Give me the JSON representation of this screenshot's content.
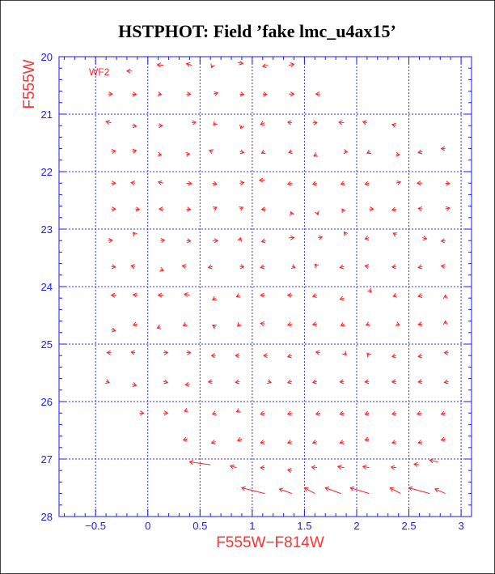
{
  "chart_data": {
    "type": "scatter",
    "title": "HSTPHOT: Field ’fake lmc_u4ax15’",
    "panel_label": "WF2",
    "xlabel": "F555W−F814W",
    "ylabel": "F555W",
    "xlim": [
      -0.85,
      3.1
    ],
    "ylim": [
      28,
      20
    ],
    "xticks": [
      -0.5,
      0,
      0.5,
      1,
      1.5,
      2,
      2.5,
      3
    ],
    "xtick_labels": [
      "−0.5",
      "0",
      "0.5",
      "1",
      "1.5",
      "2",
      "2.5",
      "3"
    ],
    "yticks": [
      20,
      21,
      22,
      23,
      24,
      25,
      26,
      27,
      28
    ],
    "ytick_labels": [
      "20",
      "21",
      "22",
      "23",
      "24",
      "25",
      "26",
      "27",
      "28"
    ],
    "grid": true,
    "colors": {
      "axis": "#1a1aff",
      "grid": "#3333ff",
      "marker": "#ff2222",
      "frame": "#000000"
    },
    "points": [
      {
        "x": -0.15,
        "y": 20.25,
        "dx": -0.05,
        "dy": 0.0
      },
      {
        "x": 0.15,
        "y": 20.15,
        "dx": -0.06,
        "dy": -0.01
      },
      {
        "x": 0.42,
        "y": 20.15,
        "dx": -0.05,
        "dy": -0.03
      },
      {
        "x": 0.62,
        "y": 20.15,
        "dx": -0.01,
        "dy": 0.04
      },
      {
        "x": 0.86,
        "y": 20.1,
        "dx": 0.05,
        "dy": 0.02
      },
      {
        "x": 1.15,
        "y": 20.15,
        "dx": -0.05,
        "dy": 0.02
      },
      {
        "x": 1.35,
        "y": 20.15,
        "dx": 0.05,
        "dy": -0.02
      },
      {
        "x": -0.38,
        "y": 20.65,
        "dx": 0.04,
        "dy": 0.0
      },
      {
        "x": -0.15,
        "y": 20.65,
        "dx": 0.04,
        "dy": 0.01
      },
      {
        "x": 0.1,
        "y": 20.65,
        "dx": 0.03,
        "dy": 0.01
      },
      {
        "x": 0.37,
        "y": 20.65,
        "dx": 0.04,
        "dy": 0.0
      },
      {
        "x": 0.63,
        "y": 20.65,
        "dx": 0.04,
        "dy": -0.02
      },
      {
        "x": 0.88,
        "y": 20.65,
        "dx": 0.04,
        "dy": 0.01
      },
      {
        "x": 1.1,
        "y": 20.65,
        "dx": 0.04,
        "dy": 0.01
      },
      {
        "x": 1.35,
        "y": 20.65,
        "dx": 0.05,
        "dy": 0.0
      },
      {
        "x": 1.65,
        "y": 20.65,
        "dx": -0.04,
        "dy": 0.0
      },
      {
        "x": -0.35,
        "y": 21.15,
        "dx": -0.05,
        "dy": -0.02
      },
      {
        "x": -0.15,
        "y": 21.2,
        "dx": 0.04,
        "dy": 0.01
      },
      {
        "x": 0.1,
        "y": 21.2,
        "dx": 0.04,
        "dy": 0.0
      },
      {
        "x": 0.42,
        "y": 21.15,
        "dx": 0.04,
        "dy": -0.01
      },
      {
        "x": 0.65,
        "y": 21.15,
        "dx": -0.02,
        "dy": 0.04
      },
      {
        "x": 0.9,
        "y": 21.2,
        "dx": -0.01,
        "dy": 0.05
      },
      {
        "x": 1.12,
        "y": 21.15,
        "dx": -0.04,
        "dy": 0.03
      },
      {
        "x": 1.38,
        "y": 21.15,
        "dx": -0.04,
        "dy": -0.01
      },
      {
        "x": 1.58,
        "y": 21.15,
        "dx": 0.04,
        "dy": 0.0
      },
      {
        "x": 1.88,
        "y": 21.15,
        "dx": -0.05,
        "dy": -0.01
      },
      {
        "x": 2.1,
        "y": 21.15,
        "dx": -0.04,
        "dy": -0.02
      },
      {
        "x": 2.38,
        "y": 21.2,
        "dx": -0.04,
        "dy": -0.02
      },
      {
        "x": -0.35,
        "y": 21.65,
        "dx": 0.04,
        "dy": -0.01
      },
      {
        "x": -0.15,
        "y": 21.65,
        "dx": 0.04,
        "dy": -0.02
      },
      {
        "x": 0.1,
        "y": 21.7,
        "dx": 0.03,
        "dy": 0.01
      },
      {
        "x": 0.37,
        "y": 21.7,
        "dx": 0.03,
        "dy": -0.01
      },
      {
        "x": 0.62,
        "y": 21.65,
        "dx": -0.03,
        "dy": -0.02
      },
      {
        "x": 0.88,
        "y": 21.65,
        "dx": 0.04,
        "dy": 0.02
      },
      {
        "x": 1.12,
        "y": 21.65,
        "dx": -0.03,
        "dy": 0.03
      },
      {
        "x": 1.38,
        "y": 21.65,
        "dx": -0.03,
        "dy": 0.02
      },
      {
        "x": 1.62,
        "y": 21.7,
        "dx": -0.03,
        "dy": 0.03
      },
      {
        "x": 1.88,
        "y": 21.65,
        "dx": 0.03,
        "dy": 0.01
      },
      {
        "x": 2.13,
        "y": 21.65,
        "dx": -0.03,
        "dy": 0.03
      },
      {
        "x": 2.38,
        "y": 21.7,
        "dx": 0.03,
        "dy": 0.01
      },
      {
        "x": 2.63,
        "y": 21.65,
        "dx": -0.04,
        "dy": 0.02
      },
      {
        "x": 2.85,
        "y": 21.6,
        "dx": -0.04,
        "dy": 0.0
      },
      {
        "x": -0.35,
        "y": 22.2,
        "dx": 0.04,
        "dy": 0.0
      },
      {
        "x": -0.12,
        "y": 22.2,
        "dx": -0.04,
        "dy": -0.01
      },
      {
        "x": 0.15,
        "y": 22.2,
        "dx": -0.05,
        "dy": -0.02
      },
      {
        "x": 0.37,
        "y": 22.2,
        "dx": 0.05,
        "dy": 0.01
      },
      {
        "x": 0.62,
        "y": 22.2,
        "dx": 0.04,
        "dy": 0.02
      },
      {
        "x": 0.88,
        "y": 22.2,
        "dx": 0.04,
        "dy": -0.01
      },
      {
        "x": 1.12,
        "y": 22.15,
        "dx": -0.05,
        "dy": 0.0
      },
      {
        "x": 1.38,
        "y": 22.2,
        "dx": -0.04,
        "dy": 0.02
      },
      {
        "x": 1.62,
        "y": 22.2,
        "dx": -0.04,
        "dy": 0.02
      },
      {
        "x": 1.88,
        "y": 22.2,
        "dx": -0.03,
        "dy": 0.02
      },
      {
        "x": 2.12,
        "y": 22.2,
        "dx": -0.04,
        "dy": 0.02
      },
      {
        "x": 2.38,
        "y": 22.2,
        "dx": 0.04,
        "dy": -0.02
      },
      {
        "x": 2.63,
        "y": 22.2,
        "dx": -0.05,
        "dy": 0.0
      },
      {
        "x": 2.85,
        "y": 22.2,
        "dx": 0.04,
        "dy": 0.01
      },
      {
        "x": -0.35,
        "y": 22.65,
        "dx": 0.04,
        "dy": 0.0
      },
      {
        "x": -0.12,
        "y": 22.65,
        "dx": 0.04,
        "dy": 0.01
      },
      {
        "x": 0.15,
        "y": 22.65,
        "dx": -0.04,
        "dy": 0.0
      },
      {
        "x": 0.37,
        "y": 22.65,
        "dx": 0.04,
        "dy": 0.01
      },
      {
        "x": 0.63,
        "y": 22.65,
        "dx": 0.03,
        "dy": -0.03
      },
      {
        "x": 0.88,
        "y": 22.65,
        "dx": 0.03,
        "dy": -0.03
      },
      {
        "x": 1.13,
        "y": 22.65,
        "dx": -0.04,
        "dy": 0.01
      },
      {
        "x": 1.38,
        "y": 22.75,
        "dx": -0.01,
        "dy": -0.05
      },
      {
        "x": 1.62,
        "y": 22.7,
        "dx": 0.01,
        "dy": 0.05
      },
      {
        "x": 1.88,
        "y": 22.7,
        "dx": -0.02,
        "dy": -0.05
      },
      {
        "x": 2.12,
        "y": 22.65,
        "dx": 0.04,
        "dy": 0.0
      },
      {
        "x": 2.38,
        "y": 22.65,
        "dx": -0.04,
        "dy": 0.02
      },
      {
        "x": 2.63,
        "y": 22.65,
        "dx": -0.04,
        "dy": -0.01
      },
      {
        "x": 2.85,
        "y": 22.65,
        "dx": 0.04,
        "dy": -0.02
      },
      {
        "x": -0.38,
        "y": 23.2,
        "dx": 0.04,
        "dy": -0.01
      },
      {
        "x": -0.12,
        "y": 23.1,
        "dx": -0.02,
        "dy": -0.04
      },
      {
        "x": 0.12,
        "y": 23.2,
        "dx": 0.04,
        "dy": -0.01
      },
      {
        "x": 0.37,
        "y": 23.2,
        "dx": 0.04,
        "dy": 0.01
      },
      {
        "x": 0.62,
        "y": 23.2,
        "dx": 0.05,
        "dy": 0.0
      },
      {
        "x": 0.88,
        "y": 23.2,
        "dx": 0.01,
        "dy": -0.05
      },
      {
        "x": 1.13,
        "y": 23.2,
        "dx": -0.04,
        "dy": 0.02
      },
      {
        "x": 1.35,
        "y": 23.15,
        "dx": 0.05,
        "dy": 0.0
      },
      {
        "x": 1.63,
        "y": 23.15,
        "dx": 0.04,
        "dy": -0.01
      },
      {
        "x": 1.9,
        "y": 23.1,
        "dx": -0.02,
        "dy": -0.05
      },
      {
        "x": 2.12,
        "y": 23.15,
        "dx": -0.04,
        "dy": 0.02
      },
      {
        "x": 2.38,
        "y": 23.1,
        "dx": -0.03,
        "dy": -0.03
      },
      {
        "x": 2.63,
        "y": 23.15,
        "dx": 0.04,
        "dy": 0.02
      },
      {
        "x": 2.85,
        "y": 23.2,
        "dx": -0.04,
        "dy": 0.01
      },
      {
        "x": -0.35,
        "y": 23.65,
        "dx": 0.04,
        "dy": 0.01
      },
      {
        "x": -0.12,
        "y": 23.65,
        "dx": -0.04,
        "dy": -0.01
      },
      {
        "x": 0.12,
        "y": 23.7,
        "dx": 0.03,
        "dy": 0.02
      },
      {
        "x": 0.37,
        "y": 23.65,
        "dx": -0.04,
        "dy": -0.01
      },
      {
        "x": 0.62,
        "y": 23.65,
        "dx": -0.04,
        "dy": 0.02
      },
      {
        "x": 0.88,
        "y": 23.65,
        "dx": 0.04,
        "dy": 0.01
      },
      {
        "x": 1.12,
        "y": 23.65,
        "dx": -0.04,
        "dy": 0.02
      },
      {
        "x": 1.38,
        "y": 23.65,
        "dx": 0.03,
        "dy": 0.02
      },
      {
        "x": 1.62,
        "y": 23.65,
        "dx": -0.02,
        "dy": -0.04
      },
      {
        "x": 1.88,
        "y": 23.65,
        "dx": -0.04,
        "dy": 0.02
      },
      {
        "x": 2.12,
        "y": 23.65,
        "dx": -0.04,
        "dy": -0.01
      },
      {
        "x": 2.38,
        "y": 23.65,
        "dx": -0.04,
        "dy": 0.01
      },
      {
        "x": 2.63,
        "y": 23.65,
        "dx": -0.04,
        "dy": 0.02
      },
      {
        "x": 2.85,
        "y": 23.65,
        "dx": -0.04,
        "dy": -0.01
      },
      {
        "x": -0.3,
        "y": 24.15,
        "dx": -0.05,
        "dy": 0.0
      },
      {
        "x": -0.1,
        "y": 24.15,
        "dx": -0.04,
        "dy": -0.01
      },
      {
        "x": 0.15,
        "y": 24.15,
        "dx": -0.05,
        "dy": 0.0
      },
      {
        "x": 0.4,
        "y": 24.15,
        "dx": -0.05,
        "dy": -0.02
      },
      {
        "x": 0.65,
        "y": 24.2,
        "dx": -0.03,
        "dy": 0.03
      },
      {
        "x": 0.88,
        "y": 24.15,
        "dx": -0.03,
        "dy": 0.03
      },
      {
        "x": 1.12,
        "y": 24.15,
        "dx": -0.04,
        "dy": 0.0
      },
      {
        "x": 1.38,
        "y": 24.15,
        "dx": -0.04,
        "dy": 0.0
      },
      {
        "x": 1.62,
        "y": 24.15,
        "dx": -0.04,
        "dy": 0.02
      },
      {
        "x": 1.88,
        "y": 24.2,
        "dx": -0.04,
        "dy": 0.02
      },
      {
        "x": 2.12,
        "y": 24.05,
        "dx": 0.02,
        "dy": 0.05
      },
      {
        "x": 2.38,
        "y": 24.15,
        "dx": -0.03,
        "dy": 0.02
      },
      {
        "x": 2.63,
        "y": 24.15,
        "dx": -0.04,
        "dy": 0.02
      },
      {
        "x": 2.85,
        "y": 24.2,
        "dx": 0.0,
        "dy": -0.05
      },
      {
        "x": -0.35,
        "y": 24.75,
        "dx": 0.04,
        "dy": 0.02
      },
      {
        "x": -0.1,
        "y": 24.65,
        "dx": -0.04,
        "dy": 0.02
      },
      {
        "x": 0.12,
        "y": 24.7,
        "dx": -0.03,
        "dy": 0.02
      },
      {
        "x": 0.37,
        "y": 24.65,
        "dx": -0.03,
        "dy": 0.03
      },
      {
        "x": 0.65,
        "y": 24.7,
        "dx": -0.03,
        "dy": -0.03
      },
      {
        "x": 0.88,
        "y": 24.65,
        "dx": -0.02,
        "dy": 0.04
      },
      {
        "x": 1.12,
        "y": 24.65,
        "dx": -0.04,
        "dy": -0.01
      },
      {
        "x": 1.38,
        "y": 24.65,
        "dx": -0.04,
        "dy": 0.02
      },
      {
        "x": 1.62,
        "y": 24.65,
        "dx": -0.04,
        "dy": 0.01
      },
      {
        "x": 1.88,
        "y": 24.65,
        "dx": -0.03,
        "dy": 0.03
      },
      {
        "x": 2.12,
        "y": 24.65,
        "dx": -0.03,
        "dy": 0.02
      },
      {
        "x": 2.38,
        "y": 24.65,
        "dx": 0.03,
        "dy": 0.02
      },
      {
        "x": 2.63,
        "y": 24.65,
        "dx": -0.04,
        "dy": 0.01
      },
      {
        "x": 2.85,
        "y": 24.65,
        "dx": 0.0,
        "dy": -0.05
      },
      {
        "x": -0.35,
        "y": 25.15,
        "dx": -0.04,
        "dy": 0.0
      },
      {
        "x": -0.12,
        "y": 25.15,
        "dx": -0.04,
        "dy": -0.01
      },
      {
        "x": 0.15,
        "y": 25.15,
        "dx": 0.04,
        "dy": 0.0
      },
      {
        "x": 0.37,
        "y": 25.15,
        "dx": 0.04,
        "dy": 0.0
      },
      {
        "x": 0.65,
        "y": 25.2,
        "dx": -0.04,
        "dy": 0.0
      },
      {
        "x": 0.88,
        "y": 25.2,
        "dx": -0.04,
        "dy": 0.0
      },
      {
        "x": 1.15,
        "y": 25.2,
        "dx": -0.04,
        "dy": 0.0
      },
      {
        "x": 1.38,
        "y": 25.2,
        "dx": -0.04,
        "dy": 0.02
      },
      {
        "x": 1.65,
        "y": 25.15,
        "dx": -0.04,
        "dy": -0.01
      },
      {
        "x": 1.88,
        "y": 25.15,
        "dx": 0.02,
        "dy": 0.04
      },
      {
        "x": 2.12,
        "y": 25.2,
        "dx": -0.02,
        "dy": -0.04
      },
      {
        "x": 2.38,
        "y": 25.2,
        "dx": -0.04,
        "dy": 0.02
      },
      {
        "x": 2.63,
        "y": 25.2,
        "dx": -0.04,
        "dy": 0.02
      },
      {
        "x": 2.88,
        "y": 25.15,
        "dx": -0.04,
        "dy": 0.0
      },
      {
        "x": -0.4,
        "y": 25.65,
        "dx": 0.03,
        "dy": 0.02
      },
      {
        "x": -0.15,
        "y": 25.7,
        "dx": 0.04,
        "dy": 0.02
      },
      {
        "x": 0.15,
        "y": 25.65,
        "dx": 0.04,
        "dy": 0.02
      },
      {
        "x": 0.4,
        "y": 25.7,
        "dx": -0.04,
        "dy": 0.01
      },
      {
        "x": 0.62,
        "y": 25.65,
        "dx": -0.04,
        "dy": 0.01
      },
      {
        "x": 0.88,
        "y": 25.65,
        "dx": -0.04,
        "dy": 0.02
      },
      {
        "x": 1.15,
        "y": 25.65,
        "dx": 0.03,
        "dy": 0.02
      },
      {
        "x": 1.38,
        "y": 25.65,
        "dx": -0.04,
        "dy": 0.02
      },
      {
        "x": 1.62,
        "y": 25.65,
        "dx": -0.04,
        "dy": 0.02
      },
      {
        "x": 1.88,
        "y": 25.65,
        "dx": -0.04,
        "dy": 0.01
      },
      {
        "x": 2.12,
        "y": 25.65,
        "dx": -0.04,
        "dy": 0.01
      },
      {
        "x": 2.38,
        "y": 25.65,
        "dx": -0.04,
        "dy": 0.01
      },
      {
        "x": 2.63,
        "y": 25.65,
        "dx": -0.04,
        "dy": 0.01
      },
      {
        "x": 2.88,
        "y": 25.65,
        "dx": -0.04,
        "dy": 0.02
      },
      {
        "x": -0.08,
        "y": 26.2,
        "dx": 0.04,
        "dy": 0.0
      },
      {
        "x": 0.15,
        "y": 26.2,
        "dx": 0.04,
        "dy": 0.0
      },
      {
        "x": 0.38,
        "y": 26.15,
        "dx": -0.03,
        "dy": 0.02
      },
      {
        "x": 0.65,
        "y": 26.2,
        "dx": -0.03,
        "dy": 0.02
      },
      {
        "x": 0.88,
        "y": 26.15,
        "dx": -0.03,
        "dy": 0.03
      },
      {
        "x": 1.12,
        "y": 26.2,
        "dx": -0.04,
        "dy": 0.02
      },
      {
        "x": 1.38,
        "y": 26.2,
        "dx": -0.04,
        "dy": 0.02
      },
      {
        "x": 1.65,
        "y": 26.2,
        "dx": -0.04,
        "dy": 0.02
      },
      {
        "x": 1.88,
        "y": 26.2,
        "dx": -0.04,
        "dy": 0.02
      },
      {
        "x": 2.12,
        "y": 26.2,
        "dx": -0.04,
        "dy": 0.02
      },
      {
        "x": 2.38,
        "y": 26.2,
        "dx": -0.04,
        "dy": 0.02
      },
      {
        "x": 2.62,
        "y": 26.2,
        "dx": -0.04,
        "dy": 0.02
      },
      {
        "x": 2.85,
        "y": 26.2,
        "dx": -0.04,
        "dy": 0.02
      },
      {
        "x": 0.38,
        "y": 26.65,
        "dx": -0.04,
        "dy": 0.02
      },
      {
        "x": 0.65,
        "y": 26.7,
        "dx": -0.04,
        "dy": 0.02
      },
      {
        "x": 0.9,
        "y": 26.65,
        "dx": -0.04,
        "dy": 0.03
      },
      {
        "x": 1.12,
        "y": 26.7,
        "dx": -0.04,
        "dy": 0.02
      },
      {
        "x": 1.38,
        "y": 26.7,
        "dx": -0.04,
        "dy": 0.02
      },
      {
        "x": 1.62,
        "y": 26.7,
        "dx": -0.04,
        "dy": 0.02
      },
      {
        "x": 1.88,
        "y": 26.7,
        "dx": -0.04,
        "dy": 0.02
      },
      {
        "x": 2.12,
        "y": 26.65,
        "dx": -0.04,
        "dy": 0.02
      },
      {
        "x": 2.38,
        "y": 26.7,
        "dx": -0.04,
        "dy": 0.02
      },
      {
        "x": 2.63,
        "y": 26.7,
        "dx": -0.04,
        "dy": 0.02
      },
      {
        "x": 2.85,
        "y": 26.65,
        "dx": -0.04,
        "dy": 0.02
      },
      {
        "x": 0.6,
        "y": 27.1,
        "dx": -0.2,
        "dy": -0.05
      },
      {
        "x": 0.85,
        "y": 27.15,
        "dx": -0.06,
        "dy": -0.03
      },
      {
        "x": 1.12,
        "y": 27.15,
        "dx": -0.04,
        "dy": 0.0
      },
      {
        "x": 1.38,
        "y": 27.2,
        "dx": -0.04,
        "dy": -0.01
      },
      {
        "x": 1.62,
        "y": 27.15,
        "dx": -0.05,
        "dy": -0.01
      },
      {
        "x": 1.88,
        "y": 27.15,
        "dx": -0.06,
        "dy": -0.02
      },
      {
        "x": 2.12,
        "y": 27.15,
        "dx": -0.06,
        "dy": -0.02
      },
      {
        "x": 2.38,
        "y": 27.15,
        "dx": -0.05,
        "dy": -0.01
      },
      {
        "x": 2.6,
        "y": 27.1,
        "dx": -0.05,
        "dy": -0.01
      },
      {
        "x": 2.78,
        "y": 27.05,
        "dx": -0.08,
        "dy": -0.03
      },
      {
        "x": 1.12,
        "y": 27.6,
        "dx": -0.22,
        "dy": -0.1
      },
      {
        "x": 1.38,
        "y": 27.6,
        "dx": -0.12,
        "dy": -0.08
      },
      {
        "x": 1.6,
        "y": 27.6,
        "dx": -0.1,
        "dy": -0.1
      },
      {
        "x": 1.85,
        "y": 27.6,
        "dx": -0.15,
        "dy": -0.1
      },
      {
        "x": 2.12,
        "y": 27.6,
        "dx": -0.18,
        "dy": -0.1
      },
      {
        "x": 2.42,
        "y": 27.6,
        "dx": -0.1,
        "dy": -0.1
      },
      {
        "x": 2.7,
        "y": 27.6,
        "dx": -0.2,
        "dy": -0.1
      },
      {
        "x": 2.85,
        "y": 27.6,
        "dx": -0.1,
        "dy": -0.08
      }
    ]
  }
}
